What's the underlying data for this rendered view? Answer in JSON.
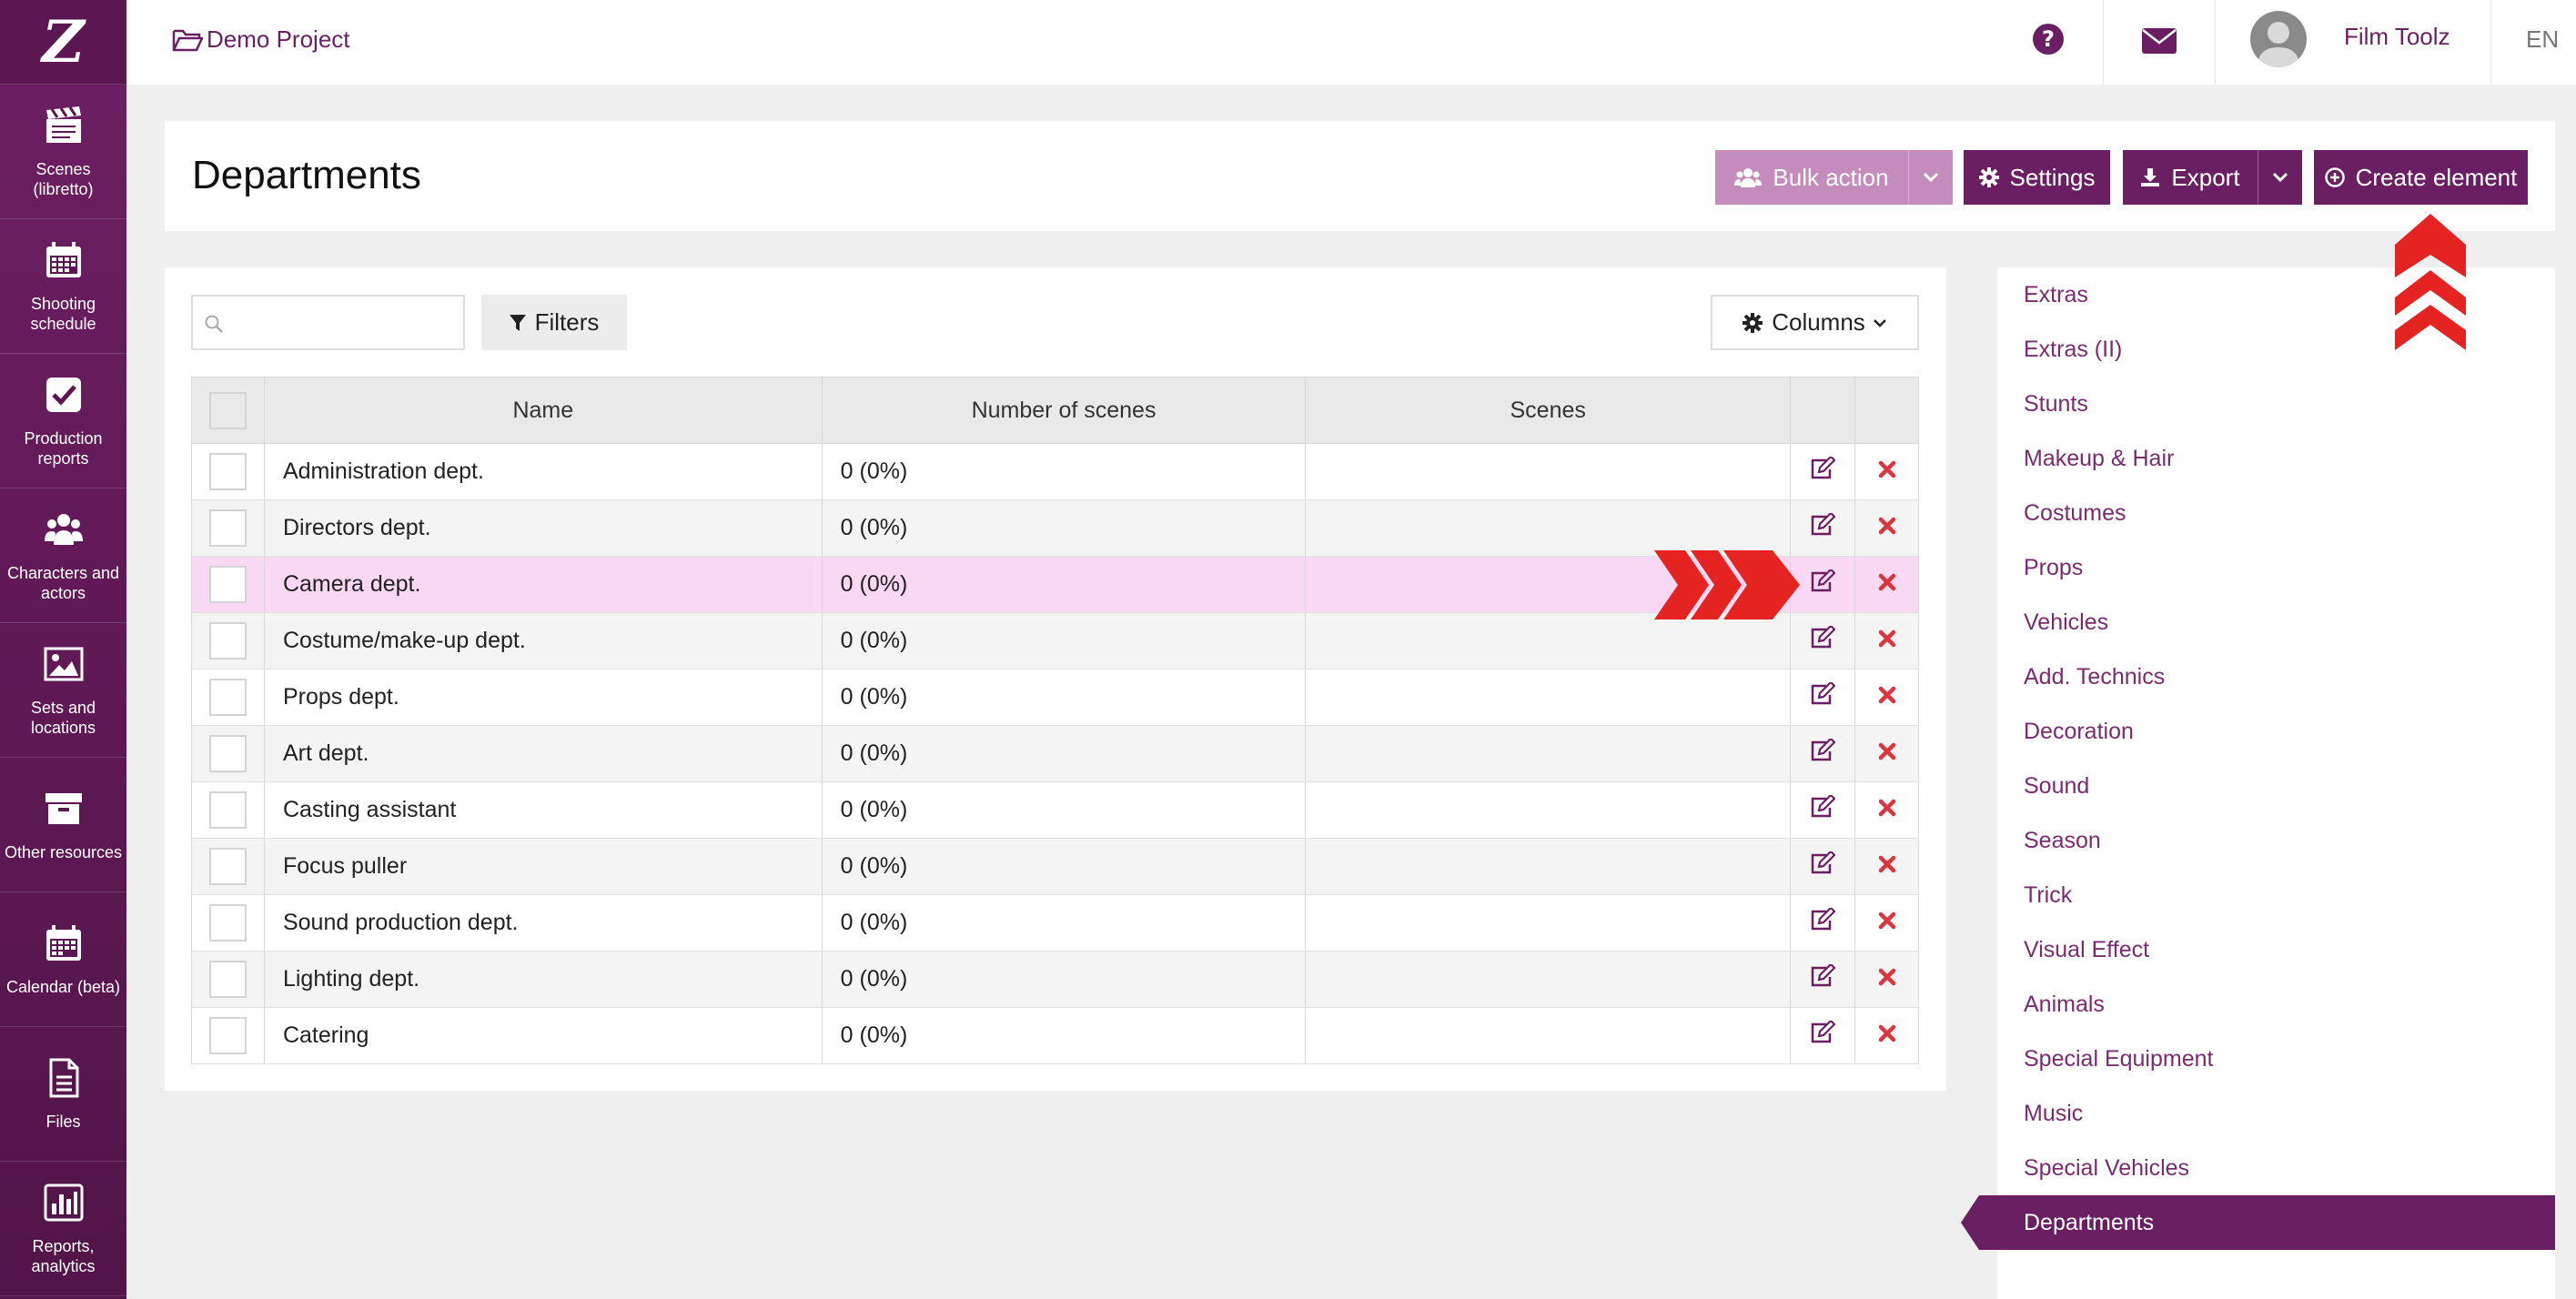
{
  "app": {
    "logo_text": "Z"
  },
  "sidebar": {
    "items": [
      {
        "label": "Scenes (libretto)",
        "icon": "clapperboard-icon"
      },
      {
        "label": "Shooting schedule",
        "icon": "calendar-icon"
      },
      {
        "label": "Production reports",
        "icon": "check-square-icon"
      },
      {
        "label": "Characters and actors",
        "icon": "users-icon"
      },
      {
        "label": "Sets and locations",
        "icon": "image-icon"
      },
      {
        "label": "Other resources",
        "icon": "archive-icon"
      },
      {
        "label": "Calendar (beta)",
        "icon": "calendar-icon"
      },
      {
        "label": "Files",
        "icon": "file-icon"
      },
      {
        "label": "Reports, analytics",
        "icon": "bar-chart-icon"
      }
    ]
  },
  "topbar": {
    "project_name": "Demo Project",
    "user_name": "Film Toolz",
    "language": "EN"
  },
  "header": {
    "title": "Departments",
    "bulk_action_label": "Bulk action",
    "settings_label": "Settings",
    "export_label": "Export",
    "create_label": "Create element"
  },
  "toolbar": {
    "search_value": "",
    "filters_label": "Filters",
    "columns_label": "Columns"
  },
  "table": {
    "columns": [
      "Name",
      "Number of scenes",
      "Scenes"
    ],
    "rows": [
      {
        "name": "Administration dept.",
        "count": "0 (0%)",
        "scenes": ""
      },
      {
        "name": "Directors dept.",
        "count": "0 (0%)",
        "scenes": ""
      },
      {
        "name": "Camera dept.",
        "count": "0 (0%)",
        "scenes": ""
      },
      {
        "name": "Costume/make-up dept.",
        "count": "0 (0%)",
        "scenes": ""
      },
      {
        "name": "Props dept.",
        "count": "0 (0%)",
        "scenes": ""
      },
      {
        "name": "Art dept.",
        "count": "0 (0%)",
        "scenes": ""
      },
      {
        "name": "Casting assistant",
        "count": "0 (0%)",
        "scenes": ""
      },
      {
        "name": "Focus puller",
        "count": "0 (0%)",
        "scenes": ""
      },
      {
        "name": "Sound production dept.",
        "count": "0 (0%)",
        "scenes": ""
      },
      {
        "name": "Lighting dept.",
        "count": "0 (0%)",
        "scenes": ""
      },
      {
        "name": "Catering",
        "count": "0 (0%)",
        "scenes": ""
      }
    ]
  },
  "categories": {
    "items": [
      "Extras",
      "Extras (II)",
      "Stunts",
      "Makeup & Hair",
      "Costumes",
      "Props",
      "Vehicles",
      "Add. Technics",
      "Decoration",
      "Sound",
      "Season",
      "Trick",
      "Visual Effect",
      "Animals",
      "Special Equipment",
      "Music",
      "Special Vehicles"
    ],
    "active": "Departments"
  },
  "colors": {
    "brand": "#6b1f63",
    "selected_row": "#f8d8f2",
    "delete": "#d9363e",
    "annotation": "#e52421"
  }
}
